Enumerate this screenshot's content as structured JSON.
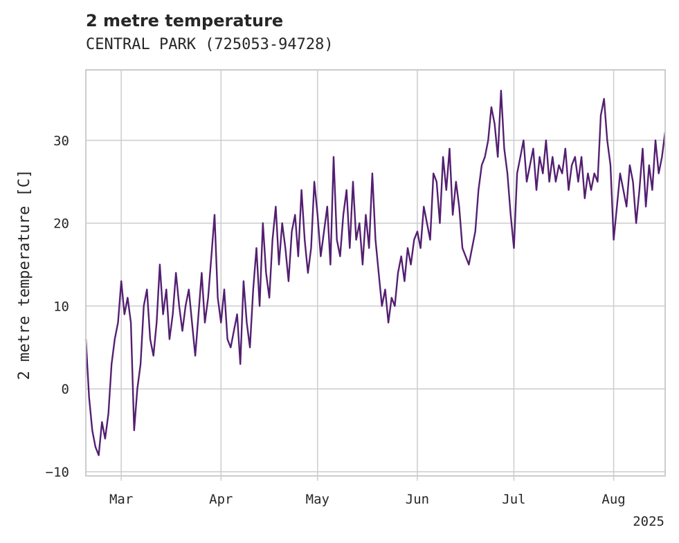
{
  "chart_data": {
    "type": "line",
    "title": "2 metre temperature",
    "subtitle": "CENTRAL PARK (725053-94728)",
    "ylabel": "2 metre temperature [C]",
    "xlabel": "",
    "x_range": [
      "2025-02-18",
      "2025-08-17"
    ],
    "ylim": [
      -10.5,
      38.5
    ],
    "y_ticks": [
      -10,
      0,
      10,
      20,
      30
    ],
    "x_ticks": [
      {
        "date": "2025-03-01",
        "label": "Mar"
      },
      {
        "date": "2025-04-01",
        "label": "Apr"
      },
      {
        "date": "2025-05-01",
        "label": "May"
      },
      {
        "date": "2025-06-01",
        "label": "Jun"
      },
      {
        "date": "2025-07-01",
        "label": "Jul"
      },
      {
        "date": "2025-08-01",
        "label": "Aug"
      }
    ],
    "year_label": "2025",
    "grid": true,
    "legend": "none",
    "series": [
      {
        "color": "#531f71",
        "x": [
          "2025-02-18",
          "2025-02-19",
          "2025-02-20",
          "2025-02-21",
          "2025-02-22",
          "2025-02-23",
          "2025-02-24",
          "2025-02-25",
          "2025-02-26",
          "2025-02-27",
          "2025-02-28",
          "2025-03-01",
          "2025-03-02",
          "2025-03-03",
          "2025-03-04",
          "2025-03-05",
          "2025-03-06",
          "2025-03-07",
          "2025-03-08",
          "2025-03-09",
          "2025-03-10",
          "2025-03-11",
          "2025-03-12",
          "2025-03-13",
          "2025-03-14",
          "2025-03-15",
          "2025-03-16",
          "2025-03-17",
          "2025-03-18",
          "2025-03-19",
          "2025-03-20",
          "2025-03-21",
          "2025-03-22",
          "2025-03-23",
          "2025-03-24",
          "2025-03-25",
          "2025-03-26",
          "2025-03-27",
          "2025-03-28",
          "2025-03-29",
          "2025-03-30",
          "2025-03-31",
          "2025-04-01",
          "2025-04-02",
          "2025-04-03",
          "2025-04-04",
          "2025-04-05",
          "2025-04-06",
          "2025-04-07",
          "2025-04-08",
          "2025-04-09",
          "2025-04-10",
          "2025-04-11",
          "2025-04-12",
          "2025-04-13",
          "2025-04-14",
          "2025-04-15",
          "2025-04-16",
          "2025-04-17",
          "2025-04-18",
          "2025-04-19",
          "2025-04-20",
          "2025-04-21",
          "2025-04-22",
          "2025-04-23",
          "2025-04-24",
          "2025-04-25",
          "2025-04-26",
          "2025-04-27",
          "2025-04-28",
          "2025-04-29",
          "2025-04-30",
          "2025-05-01",
          "2025-05-02",
          "2025-05-03",
          "2025-05-04",
          "2025-05-05",
          "2025-05-06",
          "2025-05-07",
          "2025-05-08",
          "2025-05-09",
          "2025-05-10",
          "2025-05-11",
          "2025-05-12",
          "2025-05-13",
          "2025-05-14",
          "2025-05-15",
          "2025-05-16",
          "2025-05-17",
          "2025-05-18",
          "2025-05-19",
          "2025-05-20",
          "2025-05-21",
          "2025-05-22",
          "2025-05-23",
          "2025-05-24",
          "2025-05-25",
          "2025-05-26",
          "2025-05-27",
          "2025-05-28",
          "2025-05-29",
          "2025-05-30",
          "2025-05-31",
          "2025-06-01",
          "2025-06-02",
          "2025-06-03",
          "2025-06-04",
          "2025-06-05",
          "2025-06-06",
          "2025-06-07",
          "2025-06-08",
          "2025-06-09",
          "2025-06-10",
          "2025-06-11",
          "2025-06-12",
          "2025-06-13",
          "2025-06-14",
          "2025-06-15",
          "2025-06-16",
          "2025-06-17",
          "2025-06-18",
          "2025-06-19",
          "2025-06-20",
          "2025-06-21",
          "2025-06-22",
          "2025-06-23",
          "2025-06-24",
          "2025-06-25",
          "2025-06-26",
          "2025-06-27",
          "2025-06-28",
          "2025-06-29",
          "2025-06-30",
          "2025-07-01",
          "2025-07-02",
          "2025-07-03",
          "2025-07-04",
          "2025-07-05",
          "2025-07-06",
          "2025-07-07",
          "2025-07-08",
          "2025-07-09",
          "2025-07-10",
          "2025-07-11",
          "2025-07-12",
          "2025-07-13",
          "2025-07-14",
          "2025-07-15",
          "2025-07-16",
          "2025-07-17",
          "2025-07-18",
          "2025-07-19",
          "2025-07-20",
          "2025-07-21",
          "2025-07-22",
          "2025-07-23",
          "2025-07-24",
          "2025-07-25",
          "2025-07-26",
          "2025-07-27",
          "2025-07-28",
          "2025-07-29",
          "2025-07-30",
          "2025-07-31",
          "2025-08-01",
          "2025-08-02",
          "2025-08-03",
          "2025-08-04",
          "2025-08-05",
          "2025-08-06",
          "2025-08-07",
          "2025-08-08",
          "2025-08-09",
          "2025-08-10",
          "2025-08-11",
          "2025-08-12",
          "2025-08-13",
          "2025-08-14",
          "2025-08-15",
          "2025-08-16",
          "2025-08-17"
        ],
        "values": [
          6,
          -1,
          -5,
          -7,
          -8,
          -4,
          -6,
          -3,
          3,
          6,
          8,
          13,
          9,
          11,
          8,
          -5,
          0,
          3,
          10,
          12,
          6,
          4,
          8,
          15,
          9,
          12,
          6,
          9,
          14,
          10,
          7,
          10,
          12,
          8,
          4,
          9,
          14,
          8,
          11,
          16,
          21,
          11,
          8,
          12,
          6,
          5,
          7,
          9,
          3,
          13,
          8,
          5,
          12,
          17,
          10,
          20,
          14,
          11,
          18,
          22,
          15,
          20,
          17,
          13,
          19,
          21,
          16,
          24,
          18,
          14,
          17,
          25,
          21,
          16,
          19,
          22,
          15,
          28,
          18,
          16,
          21,
          24,
          17,
          25,
          18,
          20,
          15,
          21,
          17,
          26,
          18,
          14,
          10,
          12,
          8,
          11,
          10,
          14,
          16,
          13,
          17,
          15,
          18,
          19,
          17,
          22,
          20,
          18,
          26,
          25,
          20,
          28,
          24,
          29,
          21,
          25,
          22,
          17,
          16,
          15,
          17,
          19,
          24,
          27,
          28,
          30,
          34,
          32,
          28,
          36,
          29,
          26,
          21,
          17,
          26,
          28,
          30,
          25,
          27,
          29,
          24,
          28,
          26,
          30,
          25,
          28,
          25,
          27,
          26,
          29,
          24,
          27,
          28,
          25,
          28,
          23,
          26,
          24,
          26,
          25,
          33,
          35,
          30,
          27,
          18,
          22,
          26,
          24,
          22,
          27,
          25,
          20,
          24,
          29,
          22,
          27,
          24,
          30,
          26,
          28,
          31
        ]
      }
    ]
  }
}
